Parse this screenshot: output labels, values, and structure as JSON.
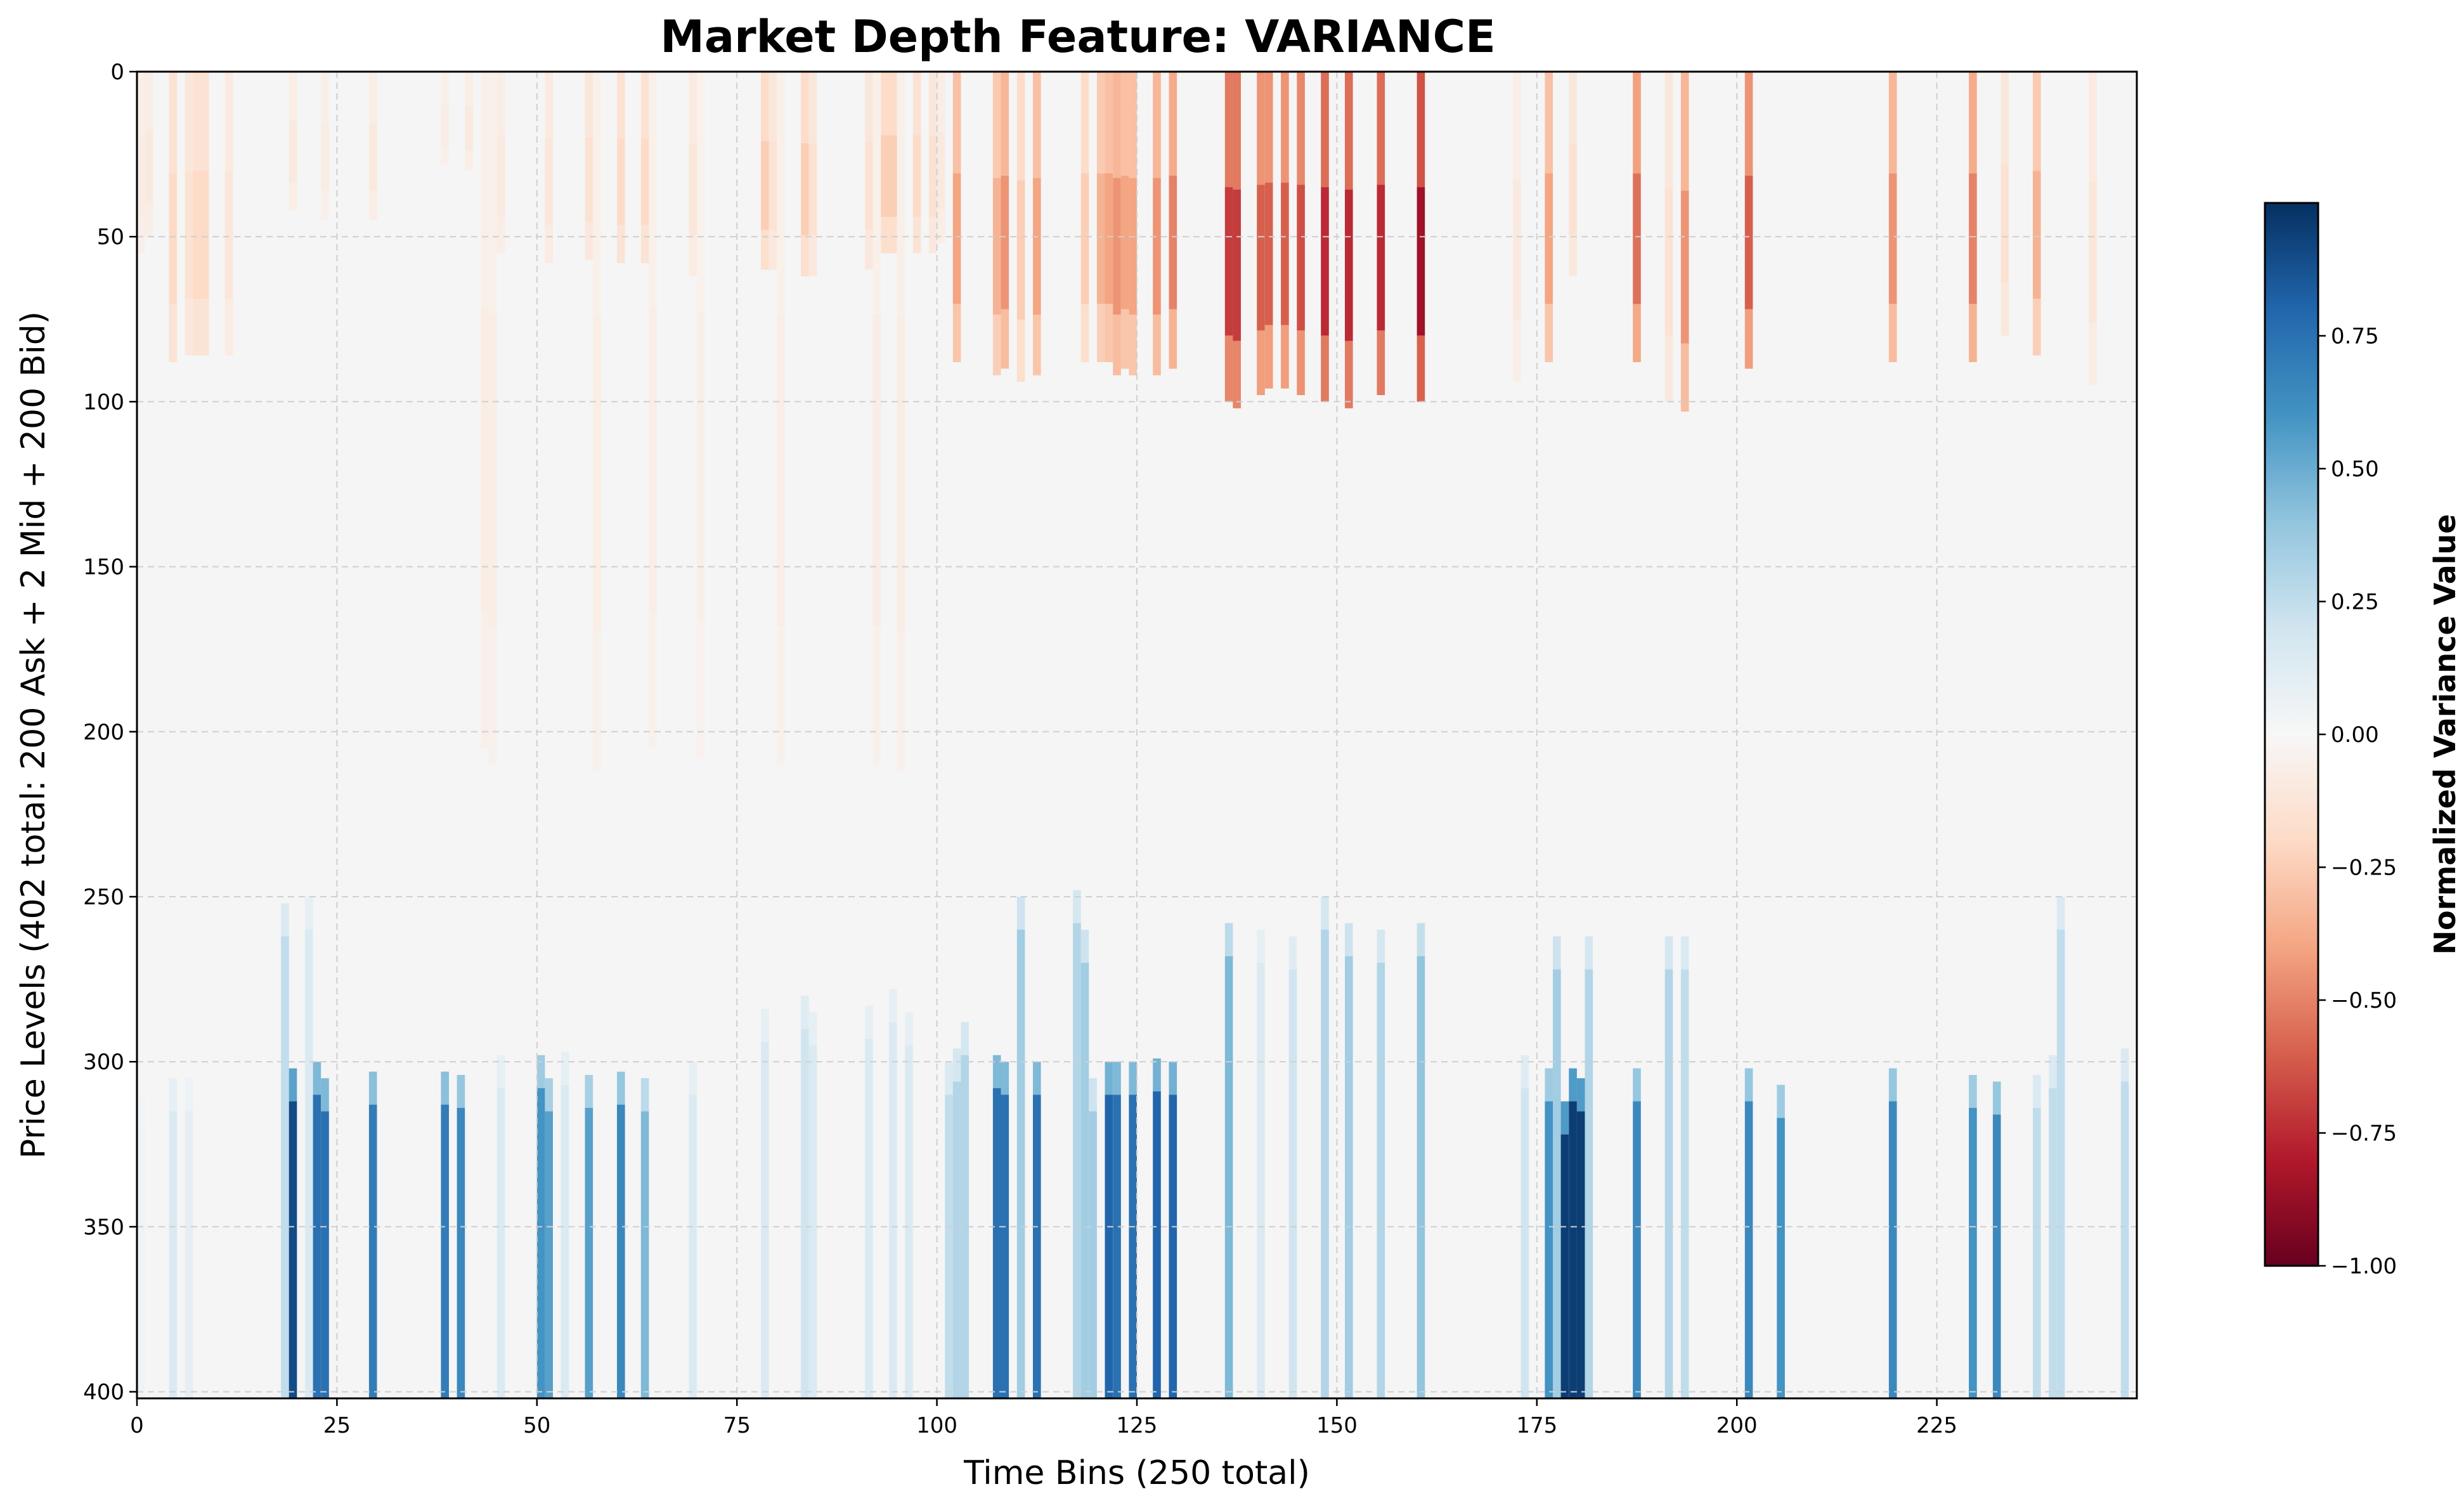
{
  "chart_data": {
    "type": "heatmap",
    "title": "Market Depth Feature: VARIANCE",
    "xlabel": "Time Bins (250 total)",
    "ylabel": "Price Levels (402 total: 200 Ask + 2 Mid + 200 Bid)",
    "colorbar_label": "Normalized Variance Value",
    "xlim": [
      0,
      250
    ],
    "ylim": [
      402,
      0
    ],
    "x_ticks": [
      0,
      25,
      50,
      75,
      100,
      125,
      150,
      175,
      200,
      225
    ],
    "y_ticks": [
      0,
      50,
      100,
      150,
      200,
      250,
      300,
      350,
      400
    ],
    "colorbar_range": [
      -1.0,
      1.0
    ],
    "colorbar_ticks": [
      0.75,
      0.5,
      0.25,
      0.0,
      -0.25,
      -0.5,
      -0.75,
      -1.0
    ],
    "colorbar_tick_labels": [
      "0.75",
      "0.50",
      "0.25",
      "0.00",
      "−0.25",
      "−0.50",
      "−0.75",
      "−1.00"
    ],
    "colormap": "RdBu",
    "background_value_color": "#f5f5f5",
    "grid": true,
    "ask_band_columns": [
      {
        "t": 0,
        "v": -0.08,
        "d": 55
      },
      {
        "t": 1,
        "v": -0.1,
        "d": 50
      },
      {
        "t": 4,
        "v": -0.2,
        "d": 88
      },
      {
        "t": 6,
        "v": -0.15,
        "d": 86
      },
      {
        "t": 7,
        "v": -0.2,
        "d": 86
      },
      {
        "t": 8,
        "v": -0.2,
        "d": 86
      },
      {
        "t": 11,
        "v": -0.12,
        "d": 86
      },
      {
        "t": 19,
        "v": -0.1,
        "d": 42
      },
      {
        "t": 23,
        "v": -0.08,
        "d": 45
      },
      {
        "t": 29,
        "v": -0.1,
        "d": 45
      },
      {
        "t": 38,
        "v": -0.08,
        "d": 28
      },
      {
        "t": 41,
        "v": -0.1,
        "d": 30
      },
      {
        "t": 43,
        "v": -0.08,
        "d": 205
      },
      {
        "t": 44,
        "v": -0.07,
        "d": 210
      },
      {
        "t": 45,
        "v": -0.1,
        "d": 55
      },
      {
        "t": 51,
        "v": -0.12,
        "d": 58
      },
      {
        "t": 56,
        "v": -0.15,
        "d": 57
      },
      {
        "t": 57,
        "v": -0.07,
        "d": 212
      },
      {
        "t": 60,
        "v": -0.2,
        "d": 58
      },
      {
        "t": 63,
        "v": -0.2,
        "d": 58
      },
      {
        "t": 64,
        "v": -0.07,
        "d": 205
      },
      {
        "t": 69,
        "v": -0.12,
        "d": 62
      },
      {
        "t": 70,
        "v": -0.06,
        "d": 208
      },
      {
        "t": 78,
        "v": -0.25,
        "d": 60
      },
      {
        "t": 79,
        "v": -0.15,
        "d": 60
      },
      {
        "t": 80,
        "v": -0.07,
        "d": 210
      },
      {
        "t": 83,
        "v": -0.25,
        "d": 62
      },
      {
        "t": 84,
        "v": -0.15,
        "d": 62
      },
      {
        "t": 91,
        "v": -0.15,
        "d": 60
      },
      {
        "t": 92,
        "v": -0.07,
        "d": 210
      },
      {
        "t": 93,
        "v": -0.25,
        "d": 55
      },
      {
        "t": 94,
        "v": -0.25,
        "d": 55
      },
      {
        "t": 95,
        "v": -0.08,
        "d": 212
      },
      {
        "t": 97,
        "v": -0.2,
        "d": 55
      },
      {
        "t": 99,
        "v": -0.15,
        "d": 55
      },
      {
        "t": 100,
        "v": -0.1,
        "d": 52
      },
      {
        "t": 102,
        "v": -0.4,
        "d": 88
      },
      {
        "t": 107,
        "v": -0.35,
        "d": 92
      },
      {
        "t": 108,
        "v": -0.45,
        "d": 90
      },
      {
        "t": 110,
        "v": -0.25,
        "d": 94
      },
      {
        "t": 112,
        "v": -0.4,
        "d": 92
      },
      {
        "t": 118,
        "v": -0.25,
        "d": 88
      },
      {
        "t": 120,
        "v": -0.35,
        "d": 88
      },
      {
        "t": 121,
        "v": -0.4,
        "d": 88
      },
      {
        "t": 122,
        "v": -0.45,
        "d": 92
      },
      {
        "t": 123,
        "v": -0.4,
        "d": 90
      },
      {
        "t": 124,
        "v": -0.4,
        "d": 92
      },
      {
        "t": 127,
        "v": -0.45,
        "d": 92
      },
      {
        "t": 129,
        "v": -0.5,
        "d": 90
      },
      {
        "t": 136,
        "v": -0.7,
        "d": 100
      },
      {
        "t": 137,
        "v": -0.7,
        "d": 102
      },
      {
        "t": 140,
        "v": -0.6,
        "d": 98
      },
      {
        "t": 141,
        "v": -0.6,
        "d": 96
      },
      {
        "t": 143,
        "v": -0.6,
        "d": 96
      },
      {
        "t": 145,
        "v": -0.65,
        "d": 98
      },
      {
        "t": 148,
        "v": -0.75,
        "d": 100
      },
      {
        "t": 151,
        "v": -0.75,
        "d": 102
      },
      {
        "t": 155,
        "v": -0.75,
        "d": 98
      },
      {
        "t": 160,
        "v": -0.85,
        "d": 100
      },
      {
        "t": 172,
        "v": -0.1,
        "d": 94
      },
      {
        "t": 176,
        "v": -0.4,
        "d": 88
      },
      {
        "t": 179,
        "v": -0.15,
        "d": 62
      },
      {
        "t": 187,
        "v": -0.55,
        "d": 88
      },
      {
        "t": 191,
        "v": -0.15,
        "d": 100
      },
      {
        "t": 193,
        "v": -0.45,
        "d": 103
      },
      {
        "t": 201,
        "v": -0.6,
        "d": 90
      },
      {
        "t": 219,
        "v": -0.45,
        "d": 88
      },
      {
        "t": 229,
        "v": -0.5,
        "d": 88
      },
      {
        "t": 233,
        "v": -0.15,
        "d": 80
      },
      {
        "t": 237,
        "v": -0.35,
        "d": 86
      },
      {
        "t": 244,
        "v": -0.12,
        "d": 95
      }
    ],
    "bid_band_columns": [
      {
        "t": 0,
        "v": 0.05,
        "s": 310
      },
      {
        "t": 4,
        "v": 0.15,
        "s": 305
      },
      {
        "t": 6,
        "v": 0.1,
        "s": 305
      },
      {
        "t": 18,
        "v": 0.25,
        "s": 252
      },
      {
        "t": 19,
        "v": 0.9,
        "s": 302
      },
      {
        "t": 21,
        "v": 0.15,
        "s": 250
      },
      {
        "t": 22,
        "v": 0.75,
        "s": 300
      },
      {
        "t": 23,
        "v": 0.75,
        "s": 305
      },
      {
        "t": 29,
        "v": 0.7,
        "s": 303
      },
      {
        "t": 38,
        "v": 0.7,
        "s": 303
      },
      {
        "t": 40,
        "v": 0.65,
        "s": 304
      },
      {
        "t": 45,
        "v": 0.15,
        "s": 298
      },
      {
        "t": 50,
        "v": 0.6,
        "s": 298
      },
      {
        "t": 51,
        "v": 0.55,
        "s": 305
      },
      {
        "t": 53,
        "v": 0.15,
        "s": 297
      },
      {
        "t": 56,
        "v": 0.55,
        "s": 304
      },
      {
        "t": 60,
        "v": 0.65,
        "s": 303
      },
      {
        "t": 63,
        "v": 0.45,
        "s": 305
      },
      {
        "t": 69,
        "v": 0.15,
        "s": 300
      },
      {
        "t": 78,
        "v": 0.15,
        "s": 284
      },
      {
        "t": 83,
        "v": 0.2,
        "s": 280
      },
      {
        "t": 84,
        "v": 0.15,
        "s": 285
      },
      {
        "t": 91,
        "v": 0.15,
        "s": 283
      },
      {
        "t": 94,
        "v": 0.15,
        "s": 278
      },
      {
        "t": 96,
        "v": 0.15,
        "s": 285
      },
      {
        "t": 101,
        "v": 0.25,
        "s": 300
      },
      {
        "t": 102,
        "v": 0.3,
        "s": 296
      },
      {
        "t": 103,
        "v": 0.3,
        "s": 288
      },
      {
        "t": 107,
        "v": 0.75,
        "s": 298
      },
      {
        "t": 108,
        "v": 0.75,
        "s": 300
      },
      {
        "t": 110,
        "v": 0.35,
        "s": 250
      },
      {
        "t": 112,
        "v": 0.75,
        "s": 300
      },
      {
        "t": 117,
        "v": 0.3,
        "s": 248
      },
      {
        "t": 118,
        "v": 0.35,
        "s": 260
      },
      {
        "t": 119,
        "v": 0.35,
        "s": 305
      },
      {
        "t": 121,
        "v": 0.8,
        "s": 300
      },
      {
        "t": 122,
        "v": 0.75,
        "s": 300
      },
      {
        "t": 124,
        "v": 0.75,
        "s": 300
      },
      {
        "t": 127,
        "v": 0.8,
        "s": 299
      },
      {
        "t": 129,
        "v": 0.8,
        "s": 300
      },
      {
        "t": 136,
        "v": 0.45,
        "s": 258
      },
      {
        "t": 140,
        "v": 0.15,
        "s": 260
      },
      {
        "t": 144,
        "v": 0.2,
        "s": 262
      },
      {
        "t": 148,
        "v": 0.3,
        "s": 250
      },
      {
        "t": 151,
        "v": 0.35,
        "s": 258
      },
      {
        "t": 155,
        "v": 0.3,
        "s": 260
      },
      {
        "t": 160,
        "v": 0.4,
        "s": 258
      },
      {
        "t": 173,
        "v": 0.2,
        "s": 298
      },
      {
        "t": 176,
        "v": 0.6,
        "s": 302
      },
      {
        "t": 177,
        "v": 0.35,
        "s": 262
      },
      {
        "t": 178,
        "v": 0.95,
        "s": 312
      },
      {
        "t": 179,
        "v": 0.95,
        "s": 302
      },
      {
        "t": 180,
        "v": 0.95,
        "s": 305
      },
      {
        "t": 181,
        "v": 0.3,
        "s": 262
      },
      {
        "t": 187,
        "v": 0.65,
        "s": 302
      },
      {
        "t": 191,
        "v": 0.3,
        "s": 262
      },
      {
        "t": 193,
        "v": 0.25,
        "s": 262
      },
      {
        "t": 201,
        "v": 0.65,
        "s": 302
      },
      {
        "t": 205,
        "v": 0.6,
        "s": 307
      },
      {
        "t": 219,
        "v": 0.65,
        "s": 302
      },
      {
        "t": 229,
        "v": 0.6,
        "s": 304
      },
      {
        "t": 232,
        "v": 0.65,
        "s": 306
      },
      {
        "t": 237,
        "v": 0.25,
        "s": 304
      },
      {
        "t": 239,
        "v": 0.25,
        "s": 298
      },
      {
        "t": 240,
        "v": 0.25,
        "s": 250
      },
      {
        "t": 248,
        "v": 0.25,
        "s": 296
      }
    ]
  }
}
